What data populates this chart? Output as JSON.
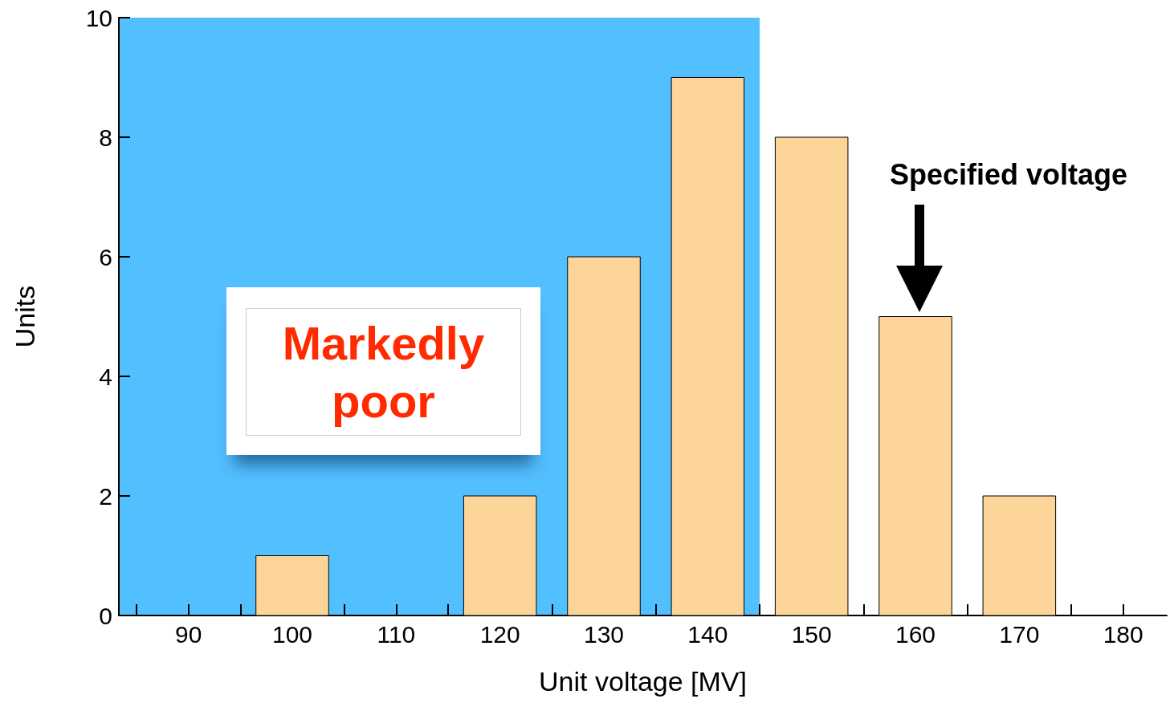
{
  "chart_data": {
    "type": "histogram",
    "xlabel": "Unit voltage [MV]",
    "ylabel": "Units",
    "bins": [
      85,
      95,
      105,
      115,
      125,
      135,
      145,
      155,
      165,
      175,
      185
    ],
    "values": [
      0,
      1,
      0,
      2,
      6,
      9,
      8,
      5,
      2,
      0
    ],
    "color": "#fdd598",
    "xlim": [
      83.3,
      184.2
    ],
    "xticks": [
      {
        "value": 85,
        "label": null
      },
      90,
      {
        "value": 95,
        "label": null
      },
      100,
      {
        "value": 105,
        "label": null
      },
      110,
      {
        "value": 115,
        "label": null
      },
      120,
      {
        "value": 125,
        "label": null
      },
      130,
      {
        "value": 135,
        "label": null
      },
      140,
      {
        "value": 145,
        "label": null
      },
      150,
      {
        "value": 155,
        "label": null
      },
      160,
      {
        "value": 165,
        "label": null
      },
      170,
      {
        "value": 175,
        "label": null
      },
      180
    ],
    "ylim": [
      0,
      10
    ],
    "yticks": [
      0,
      2,
      4,
      6,
      8,
      10
    ],
    "grid": false,
    "bands": [
      {
        "axis": "x",
        "from": 83.3,
        "to": 145,
        "color": "#52bfff"
      }
    ],
    "annotations": [
      "Markedly poor",
      "Specified voltage"
    ]
  }
}
